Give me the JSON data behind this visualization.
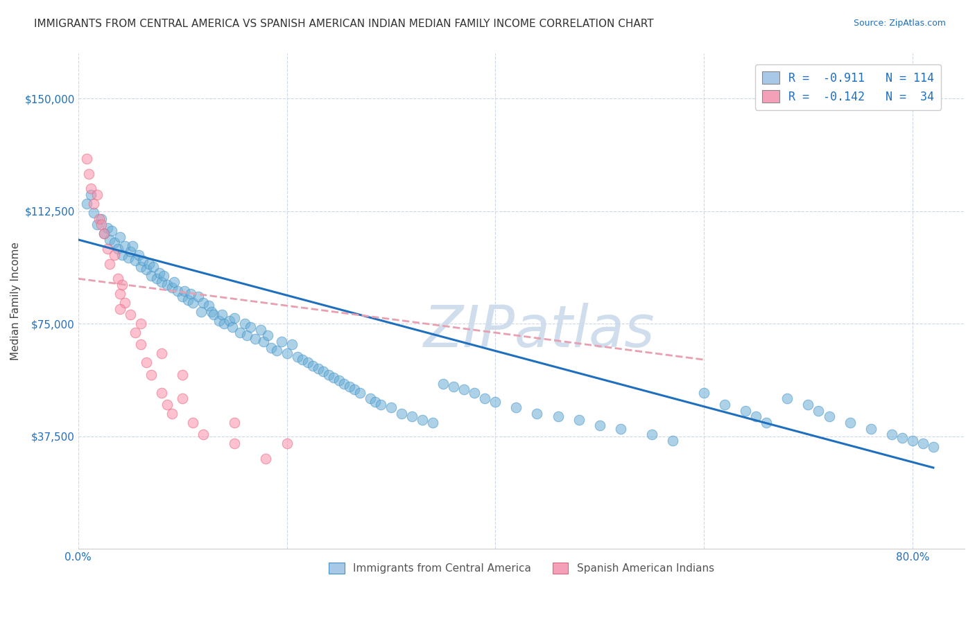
{
  "title": "IMMIGRANTS FROM CENTRAL AMERICA VS SPANISH AMERICAN INDIAN MEDIAN FAMILY INCOME CORRELATION CHART",
  "source": "Source: ZipAtlas.com",
  "ylabel": "Median Family Income",
  "xlim": [
    0.0,
    0.85
  ],
  "ylim": [
    0,
    165000
  ],
  "xticks": [
    0.0,
    0.2,
    0.4,
    0.6,
    0.8
  ],
  "xticklabels": [
    "0.0%",
    "",
    "",
    "",
    "80.0%"
  ],
  "yticks": [
    0,
    37500,
    75000,
    112500,
    150000
  ],
  "yticklabels": [
    "",
    "$37,500",
    "$75,000",
    "$112,500",
    "$150,000"
  ],
  "legend_entries": [
    {
      "label": "R =  -0.911   N = 114",
      "color": "#a8c8e8"
    },
    {
      "label": "R =  -0.142   N =  34",
      "color": "#f4a0b8"
    }
  ],
  "blue_scatter_x": [
    0.008,
    0.012,
    0.015,
    0.018,
    0.022,
    0.025,
    0.028,
    0.03,
    0.032,
    0.035,
    0.038,
    0.04,
    0.042,
    0.045,
    0.048,
    0.05,
    0.052,
    0.055,
    0.058,
    0.06,
    0.062,
    0.065,
    0.068,
    0.07,
    0.072,
    0.075,
    0.078,
    0.08,
    0.082,
    0.085,
    0.09,
    0.092,
    0.095,
    0.1,
    0.102,
    0.105,
    0.108,
    0.11,
    0.115,
    0.118,
    0.12,
    0.125,
    0.128,
    0.13,
    0.135,
    0.138,
    0.14,
    0.145,
    0.148,
    0.15,
    0.155,
    0.16,
    0.162,
    0.165,
    0.17,
    0.175,
    0.178,
    0.182,
    0.185,
    0.19,
    0.195,
    0.2,
    0.205,
    0.21,
    0.215,
    0.22,
    0.225,
    0.23,
    0.235,
    0.24,
    0.245,
    0.25,
    0.255,
    0.26,
    0.265,
    0.27,
    0.28,
    0.285,
    0.29,
    0.3,
    0.31,
    0.32,
    0.33,
    0.34,
    0.35,
    0.36,
    0.37,
    0.38,
    0.39,
    0.4,
    0.42,
    0.44,
    0.46,
    0.48,
    0.5,
    0.52,
    0.55,
    0.57,
    0.6,
    0.62,
    0.64,
    0.65,
    0.66,
    0.68,
    0.7,
    0.71,
    0.72,
    0.74,
    0.76,
    0.78,
    0.79,
    0.8,
    0.81,
    0.82
  ],
  "blue_scatter_y": [
    115000,
    118000,
    112000,
    108000,
    110000,
    105000,
    107000,
    103000,
    106000,
    102000,
    100000,
    104000,
    98000,
    101000,
    97000,
    99000,
    101000,
    96000,
    98000,
    94000,
    96000,
    93000,
    95000,
    91000,
    94000,
    90000,
    92000,
    89000,
    91000,
    88000,
    87000,
    89000,
    86000,
    84000,
    86000,
    83000,
    85000,
    82000,
    84000,
    79000,
    82000,
    81000,
    79000,
    78000,
    76000,
    78000,
    75000,
    76000,
    74000,
    77000,
    72000,
    75000,
    71000,
    74000,
    70000,
    73000,
    69000,
    71000,
    67000,
    66000,
    69000,
    65000,
    68000,
    64000,
    63000,
    62000,
    61000,
    60000,
    59000,
    58000,
    57000,
    56000,
    55000,
    54000,
    53000,
    52000,
    50000,
    49000,
    48000,
    47000,
    45000,
    44000,
    43000,
    42000,
    55000,
    54000,
    53000,
    52000,
    50000,
    49000,
    47000,
    45000,
    44000,
    43000,
    41000,
    40000,
    38000,
    36000,
    52000,
    48000,
    46000,
    44000,
    42000,
    50000,
    48000,
    46000,
    44000,
    42000,
    40000,
    38000,
    37000,
    36000,
    35000,
    34000
  ],
  "pink_scatter_x": [
    0.008,
    0.01,
    0.012,
    0.015,
    0.018,
    0.02,
    0.022,
    0.025,
    0.028,
    0.03,
    0.035,
    0.038,
    0.04,
    0.042,
    0.045,
    0.05,
    0.055,
    0.06,
    0.065,
    0.07,
    0.08,
    0.085,
    0.09,
    0.1,
    0.11,
    0.12,
    0.15,
    0.18,
    0.04,
    0.06,
    0.08,
    0.1,
    0.15,
    0.2
  ],
  "pink_scatter_y": [
    130000,
    125000,
    120000,
    115000,
    118000,
    110000,
    108000,
    105000,
    100000,
    95000,
    98000,
    90000,
    85000,
    88000,
    82000,
    78000,
    72000,
    68000,
    62000,
    58000,
    52000,
    48000,
    45000,
    50000,
    42000,
    38000,
    35000,
    30000,
    80000,
    75000,
    65000,
    58000,
    42000,
    35000
  ],
  "blue_line_x": [
    0.0,
    0.82
  ],
  "blue_line_y": [
    103000,
    27000
  ],
  "pink_line_x": [
    0.0,
    0.6
  ],
  "pink_line_y": [
    90000,
    63000
  ],
  "blue_dot_color": "#6baed6",
  "blue_edge_color": "#4292c6",
  "pink_dot_color": "#fc8fa8",
  "pink_edge_color": "#e8607a",
  "blue_line_color": "#1f6fbf",
  "pink_line_color": "#e8a0b0",
  "watermark": "ZIPatlas",
  "watermark_color": "#c8d8ea",
  "title_fontsize": 11,
  "axis_label_fontsize": 11,
  "tick_fontsize": 11,
  "legend_fontsize": 12,
  "background_color": "#ffffff",
  "grid_color": "#ccd8e8",
  "bottom_legend": [
    {
      "label": "Immigrants from Central America",
      "color": "#a8c8e8",
      "edge": "#4292c6"
    },
    {
      "label": "Spanish American Indians",
      "color": "#f4a0b8",
      "edge": "#e8607a"
    }
  ]
}
